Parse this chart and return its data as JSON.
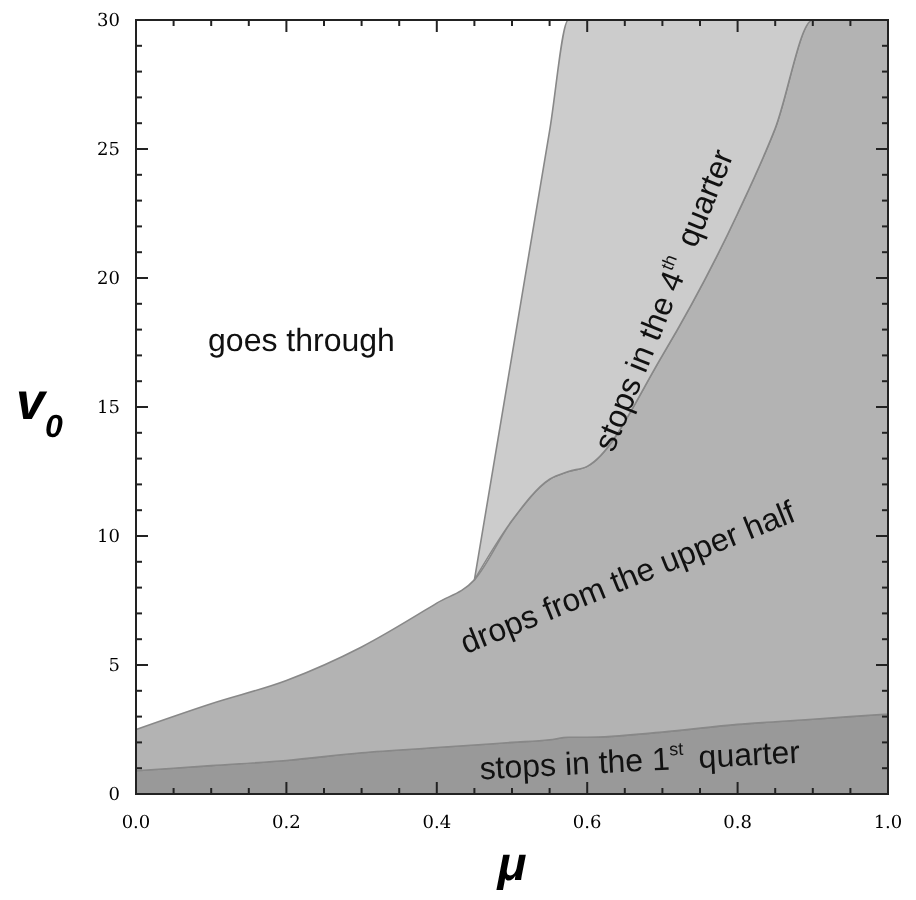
{
  "chart_data": {
    "type": "area",
    "stacked": true,
    "xlabel": "μ",
    "ylabel": "v$_{0}$",
    "x": [
      0,
      0.1,
      0.2,
      0.3,
      0.4,
      0.45,
      0.5,
      0.55,
      0.575,
      0.6,
      0.7,
      0.8,
      0.85,
      0.9,
      1.0
    ],
    "series": [
      {
        "color": "#999999",
        "values": [
          0.9,
          1.1,
          1.3,
          1.6,
          1.8,
          1.9,
          2.0,
          2.1,
          2.2,
          2.2,
          2.4,
          2.7,
          2.8,
          2.9,
          3.1
        ]
      },
      {
        "color": "#b3b3b3",
        "values": [
          1.6,
          2.4,
          3.1,
          4.1,
          5.6,
          6.4,
          8.6,
          10.1,
          10.3,
          10.5,
          14.6,
          19.8,
          23.0,
          27.1,
          26.9
        ]
      },
      {
        "color": "#cccccc",
        "values": [
          null,
          null,
          null,
          null,
          null,
          0,
          6.4,
          13.5,
          17.5,
          17.3,
          13.0,
          7.5,
          4.2,
          0,
          0
        ]
      }
    ],
    "xlim": [
      0,
      1
    ],
    "ylim": [
      0,
      30
    ],
    "xticks": [
      {
        "value": 0,
        "label": "0.0"
      },
      {
        "value": 0.05,
        "label": null
      },
      {
        "value": 0.1,
        "label": null
      },
      {
        "value": 0.15,
        "label": null
      },
      {
        "value": 0.2,
        "label": "0.2"
      },
      {
        "value": 0.25,
        "label": null
      },
      {
        "value": 0.3,
        "label": null
      },
      {
        "value": 0.35,
        "label": null
      },
      {
        "value": 0.4,
        "label": "0.4"
      },
      {
        "value": 0.45,
        "label": null
      },
      {
        "value": 0.5,
        "label": null
      },
      {
        "value": 0.55,
        "label": null
      },
      {
        "value": 0.6,
        "label": "0.6"
      },
      {
        "value": 0.65,
        "label": null
      },
      {
        "value": 0.7,
        "label": null
      },
      {
        "value": 0.75,
        "label": null
      },
      {
        "value": 0.8,
        "label": "0.8"
      },
      {
        "value": 0.85,
        "label": null
      },
      {
        "value": 0.9,
        "label": null
      },
      {
        "value": 0.95,
        "label": null
      },
      {
        "value": 1,
        "label": "1.0"
      }
    ],
    "yticks": [
      0,
      {
        "value": 1,
        "label": null
      },
      {
        "value": 2,
        "label": null
      },
      {
        "value": 3,
        "label": null
      },
      {
        "value": 4,
        "label": null
      },
      5,
      {
        "value": 6,
        "label": null
      },
      {
        "value": 7,
        "label": null
      },
      {
        "value": 8,
        "label": null
      },
      {
        "value": 9,
        "label": null
      },
      10,
      {
        "value": 11,
        "label": null
      },
      {
        "value": 12,
        "label": null
      },
      {
        "value": 13,
        "label": null
      },
      {
        "value": 14,
        "label": null
      },
      15,
      {
        "value": 16,
        "label": null
      },
      {
        "value": 17,
        "label": null
      },
      {
        "value": 18,
        "label": null
      },
      {
        "value": 19,
        "label": null
      },
      20,
      {
        "value": 21,
        "label": null
      },
      {
        "value": 22,
        "label": null
      },
      {
        "value": 23,
        "label": null
      },
      {
        "value": 24,
        "label": null
      },
      25,
      {
        "value": 26,
        "label": null
      },
      {
        "value": 27,
        "label": null
      },
      {
        "value": 28,
        "label": null
      },
      {
        "value": 29,
        "label": null
      },
      30
    ],
    "annotations": [
      "goes through",
      "stops in the 4$^{th}$ quarter",
      "drops from the upper half",
      "stops in the 1$^{st}$ quarter"
    ]
  }
}
